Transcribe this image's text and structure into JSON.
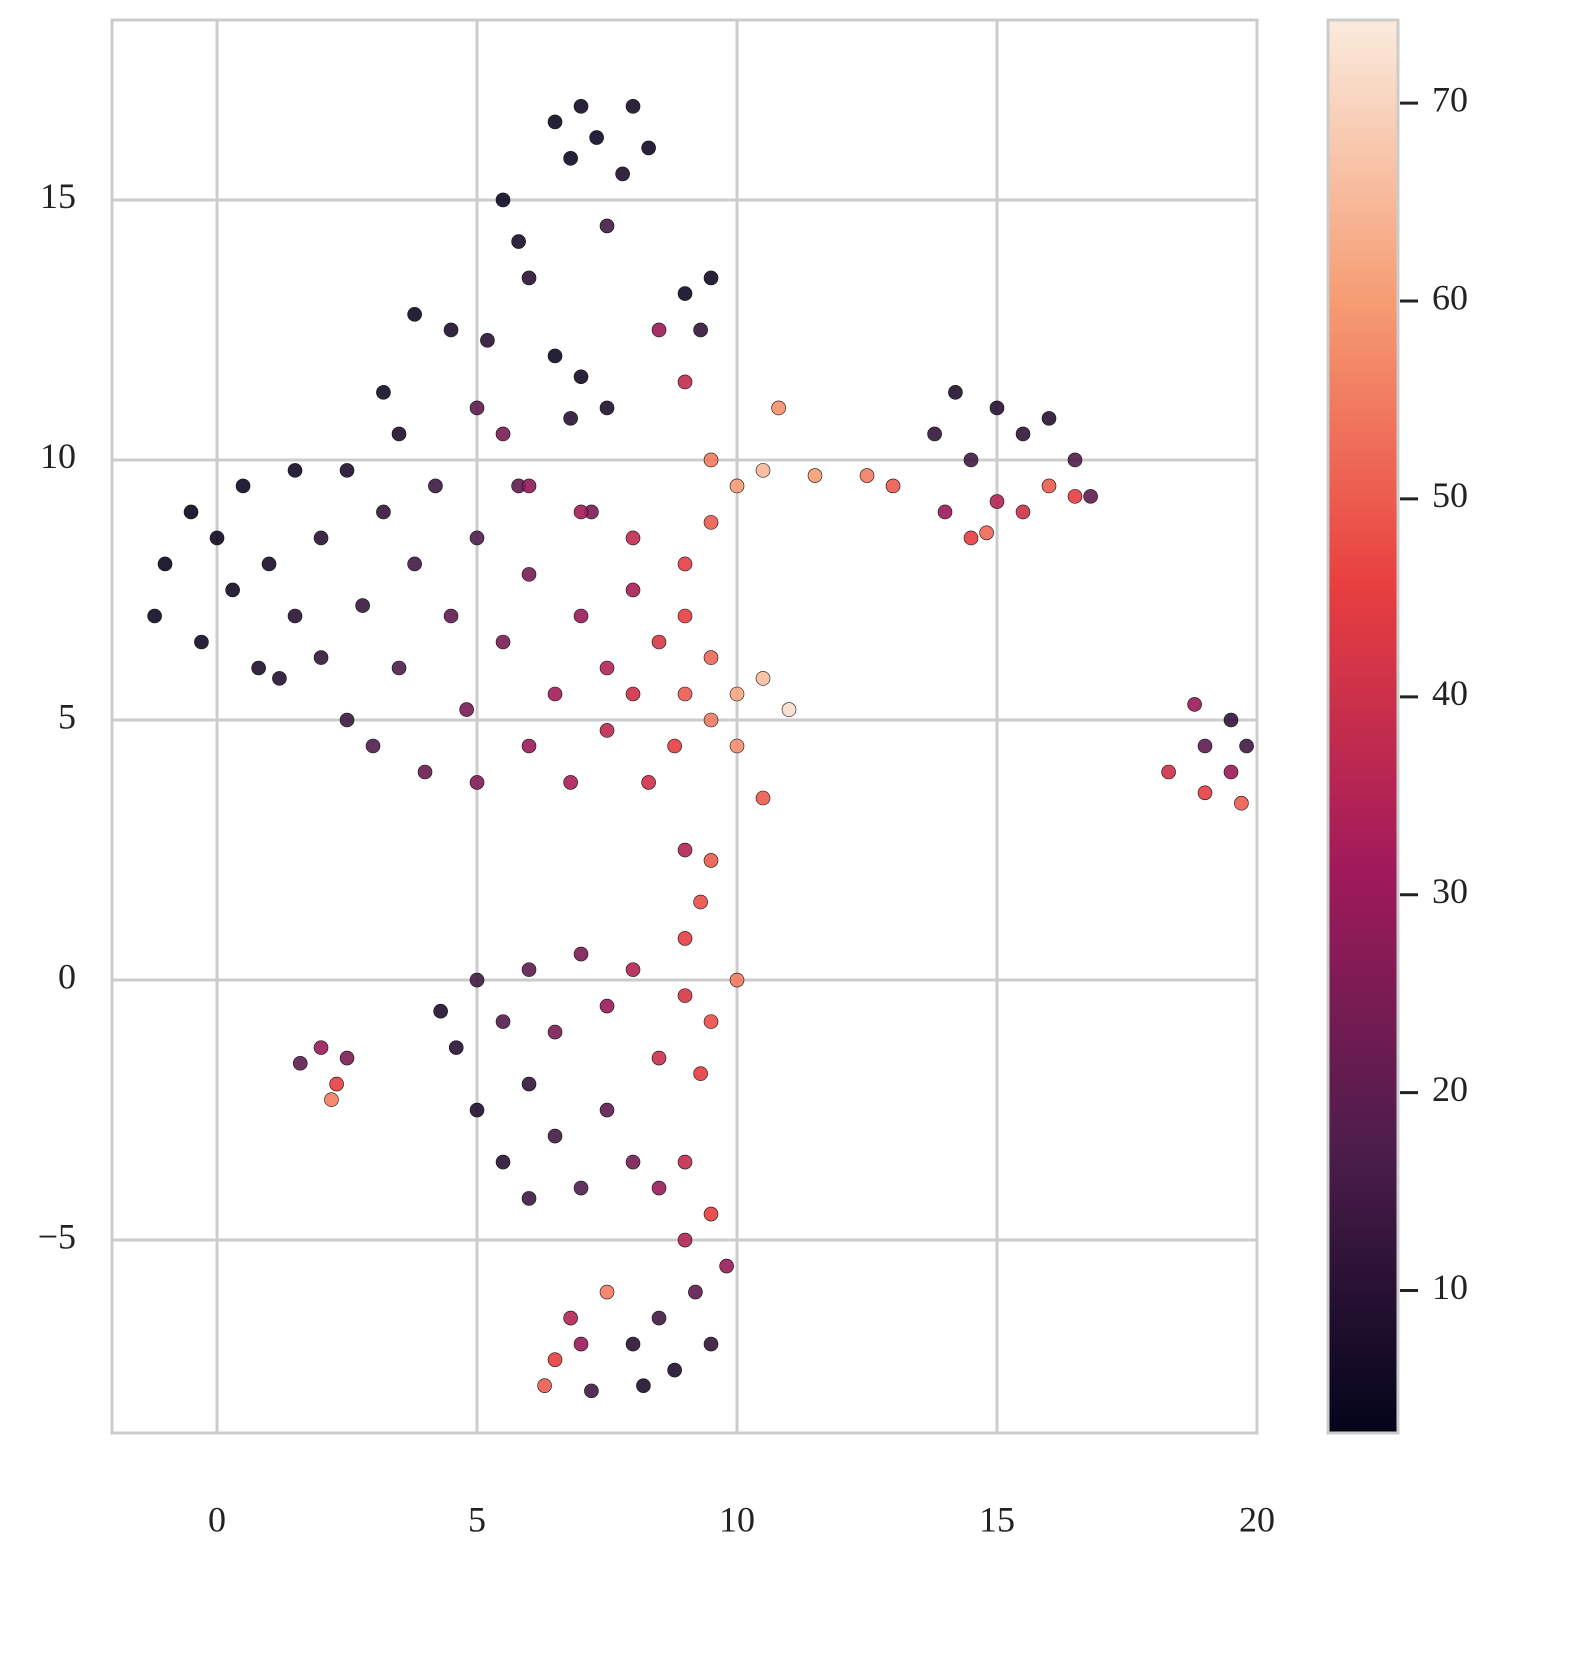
{
  "chart_data": {
    "type": "scatter",
    "xlim": [
      -2.02,
      20
    ],
    "ylim": [
      -8.71,
      18.46
    ],
    "xticks": [
      0,
      5,
      10,
      15,
      20
    ],
    "yticks": [
      {
        "value": -5,
        "label": "−5"
      },
      0,
      5,
      10,
      15
    ],
    "grid": true,
    "colormap": [
      "#03051a",
      "#4c1d4b",
      "#a11a5b",
      "#e83f3f",
      "#f69c73",
      "#faebdd"
    ],
    "clim": [
      2.8,
      74.2
    ],
    "cticks": [
      10,
      20,
      30,
      40,
      50,
      60,
      70
    ],
    "series": [
      {
        "x": [
          -1,
          -1.2,
          -0.5,
          -0.3,
          0,
          0.3,
          0.5,
          0.8,
          1,
          1.2,
          1.5,
          1.5,
          2,
          2,
          2.5,
          2.5,
          2.8,
          3,
          3.2,
          3.5,
          3.8,
          4,
          4.2,
          4.5,
          4.8,
          5,
          5,
          5.5,
          5.8,
          6,
          6,
          6.5,
          6.8,
          7,
          7.2,
          7.5,
          7.5,
          8,
          8,
          8.3,
          8.5,
          8.8,
          9,
          9,
          9.5,
          9.5,
          10,
          10,
          10.5,
          11,
          10.5,
          5,
          5.5,
          6,
          7,
          8,
          9,
          9.5,
          10,
          10.5,
          9.5,
          10.8,
          9,
          8.5,
          6.5,
          7,
          7.3,
          8,
          8.3,
          7.8,
          6.8,
          7.5,
          5.5,
          5.8,
          6,
          9,
          9.5,
          9.3,
          3.8,
          4.5,
          5.2,
          3.2,
          3.5,
          6.5,
          7,
          7.5,
          6.8,
          11.5,
          12.5,
          13,
          13.8,
          14.2,
          14.5,
          15,
          15.5,
          16,
          16.5,
          16.8,
          14,
          14.5,
          15,
          15.5,
          16,
          16.5,
          14.8,
          18.3,
          18.8,
          19,
          19.5,
          19.8,
          19,
          19.7,
          19.5,
          4.3,
          4.6,
          5,
          5.5,
          6,
          6.5,
          7,
          7.5,
          8,
          8.5,
          9,
          9.5,
          10,
          5,
          5.5,
          6,
          6.5,
          7,
          7.5,
          8,
          8.5,
          6,
          9,
          9.3,
          1.6,
          2,
          2.3,
          2.5,
          2.2,
          9,
          9.5,
          9.3,
          9,
          9.5,
          9.8,
          9.2,
          9.5,
          8.8,
          8.5,
          9,
          8,
          7.5,
          7,
          6.5,
          6.3,
          7.2,
          8.2,
          6.8
        ],
        "values": [
          8,
          7,
          9,
          6.5,
          8.5,
          7.5,
          9.5,
          6,
          8,
          5.8,
          9.8,
          7,
          8.5,
          6.2,
          9.8,
          5,
          7.2,
          4.5,
          9,
          6,
          8,
          4,
          9.5,
          7,
          5.2,
          8.5,
          3.8,
          6.5,
          9.5,
          4.5,
          7.8,
          5.5,
          3.8,
          7,
          9,
          4.8,
          6,
          5.5,
          7.5,
          3.8,
          6.5,
          4.5,
          5.5,
          7,
          5,
          6.2,
          4.5,
          5.5,
          5.8,
          5.2,
          3.5,
          11,
          10.5,
          9.5,
          9,
          8.5,
          8,
          8.8,
          9.5,
          9.8,
          10,
          11,
          11.5,
          12.5,
          16.5,
          16.8,
          16.2,
          16.8,
          16,
          15.5,
          15.8,
          14.5,
          15,
          14.2,
          13.5,
          13.2,
          13.5,
          12.5,
          12.8,
          12.5,
          12.3,
          11.3,
          10.5,
          12,
          11.6,
          11,
          10.8,
          9.7,
          9.7,
          9.5,
          10.5,
          11.3,
          10,
          11,
          10.5,
          10.8,
          10,
          9.3,
          9,
          8.5,
          9.2,
          9,
          9.5,
          9.3,
          8.6,
          4,
          5.3,
          4.5,
          5,
          4.5,
          3.6,
          3.4,
          4,
          -0.6,
          -1.3,
          0,
          -0.8,
          0.2,
          -1,
          0.5,
          -0.5,
          0.2,
          -1.5,
          -0.3,
          -0.8,
          0,
          -2.5,
          -3.5,
          -2,
          -3,
          -4,
          -2.5,
          -3.5,
          -4,
          -4.2,
          -3.5,
          -1.8,
          -1.6,
          -1.3,
          -2,
          -1.5,
          -2.3,
          2.5,
          2.3,
          1.5,
          0.8,
          -4.5,
          -5.5,
          -6,
          -7,
          -7.5,
          -6.5,
          -5,
          -7,
          -6,
          -7,
          -7.3,
          -7.8,
          -7.9,
          -7.8,
          -6.5
        ],
        "color_values": [
          4,
          5,
          4,
          6,
          5,
          6,
          5,
          8,
          7,
          9,
          6,
          10,
          10,
          12,
          8,
          14,
          13,
          18,
          12,
          17,
          15,
          22,
          14,
          20,
          24,
          18,
          26,
          25,
          20,
          30,
          24,
          32,
          33,
          30,
          25,
          37,
          35,
          40,
          33,
          40,
          42,
          45,
          50,
          45,
          55,
          52,
          58,
          62,
          66,
          72,
          50,
          20,
          25,
          28,
          32,
          38,
          45,
          50,
          60,
          65,
          55,
          58,
          38,
          30,
          5,
          6,
          5,
          7,
          6,
          8,
          5,
          15,
          5,
          7,
          10,
          5,
          6,
          12,
          5,
          8,
          10,
          6,
          8,
          5,
          6,
          8,
          10,
          60,
          55,
          50,
          12,
          8,
          15,
          10,
          12,
          10,
          18,
          20,
          30,
          45,
          35,
          40,
          50,
          45,
          52,
          40,
          30,
          20,
          12,
          15,
          45,
          50,
          30,
          8,
          10,
          15,
          18,
          20,
          25,
          25,
          30,
          35,
          40,
          42,
          48,
          55,
          8,
          10,
          12,
          15,
          18,
          20,
          25,
          30,
          14,
          38,
          45,
          20,
          30,
          45,
          25,
          55,
          35,
          50,
          48,
          45,
          45,
          30,
          20,
          12,
          8,
          15,
          35,
          10,
          55,
          30,
          45,
          50,
          15,
          8,
          35
        ]
      }
    ]
  }
}
